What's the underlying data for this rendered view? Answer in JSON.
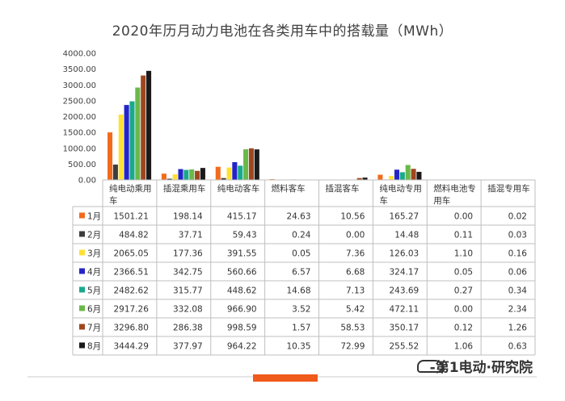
{
  "chart_data": {
    "type": "bar",
    "title": "2020年历月动力电池在各类用车中的搭载量（MWh）",
    "categories": [
      "纯电动乘用车",
      "插混乘用车",
      "纯电动客车",
      "燃料客车",
      "插混客车",
      "纯电动专用车",
      "燃料电池专用车",
      "插混专用车"
    ],
    "ylim": [
      0,
      4000
    ],
    "yticks": [
      "0.00",
      "500.00",
      "1000.00",
      "1500.00",
      "2000.00",
      "2500.00",
      "3000.00",
      "3500.00",
      "4000.00"
    ],
    "series": [
      {
        "name": "1月",
        "color": "#f26b1d",
        "values": [
          1501.21,
          198.14,
          415.17,
          24.63,
          10.56,
          165.27,
          0.0,
          0.02
        ]
      },
      {
        "name": "2月",
        "color": "#3d3d3d",
        "values": [
          484.82,
          37.71,
          59.43,
          0.24,
          0.0,
          14.48,
          0.11,
          0.03
        ]
      },
      {
        "name": "3月",
        "color": "#ffe135",
        "values": [
          2065.05,
          177.36,
          391.55,
          0.05,
          7.36,
          126.03,
          1.1,
          0.16
        ]
      },
      {
        "name": "4月",
        "color": "#2424c8",
        "values": [
          2366.51,
          342.75,
          560.66,
          6.57,
          6.68,
          324.17,
          0.05,
          0.06
        ]
      },
      {
        "name": "5月",
        "color": "#19a98c",
        "values": [
          2482.62,
          315.77,
          448.62,
          14.68,
          7.13,
          243.69,
          0.27,
          0.34
        ]
      },
      {
        "name": "6月",
        "color": "#6ab84a",
        "values": [
          2917.26,
          332.08,
          966.9,
          3.52,
          5.42,
          472.11,
          0.0,
          2.34
        ]
      },
      {
        "name": "7月",
        "color": "#a0461e",
        "values": [
          3296.8,
          286.38,
          998.59,
          1.57,
          58.53,
          350.17,
          0.12,
          1.26
        ]
      },
      {
        "name": "8月",
        "color": "#1a1a1a",
        "values": [
          3444.29,
          377.97,
          964.22,
          10.35,
          72.99,
          255.52,
          1.06,
          0.63
        ]
      }
    ],
    "table_values": [
      [
        "1501.21",
        "198.14",
        "415.17",
        "24.63",
        "10.56",
        "165.27",
        "0.00",
        "0.02"
      ],
      [
        "484.82",
        "37.71",
        "59.43",
        "0.24",
        "0.00",
        "14.48",
        "0.11",
        "0.03"
      ],
      [
        "2065.05",
        "177.36",
        "391.55",
        "0.05",
        "7.36",
        "126.03",
        "1.10",
        "0.16"
      ],
      [
        "2366.51",
        "342.75",
        "560.66",
        "6.57",
        "6.68",
        "324.17",
        "0.05",
        "0.06"
      ],
      [
        "2482.62",
        "315.77",
        "448.62",
        "14.68",
        "7.13",
        "243.69",
        "0.27",
        "0.34"
      ],
      [
        "2917.26",
        "332.08",
        "966.90",
        "3.52",
        "5.42",
        "472.11",
        "0.00",
        "2.34"
      ],
      [
        "3296.80",
        "286.38",
        "998.59",
        "1.57",
        "58.53",
        "350.17",
        "0.12",
        "1.26"
      ],
      [
        "3444.29",
        "377.97",
        "964.22",
        "10.35",
        "72.99",
        "255.52",
        "1.06",
        "0.63"
      ]
    ],
    "grid": false,
    "legend": "table-rows"
  },
  "footer": {
    "brand": "-第1电动·研究院"
  }
}
